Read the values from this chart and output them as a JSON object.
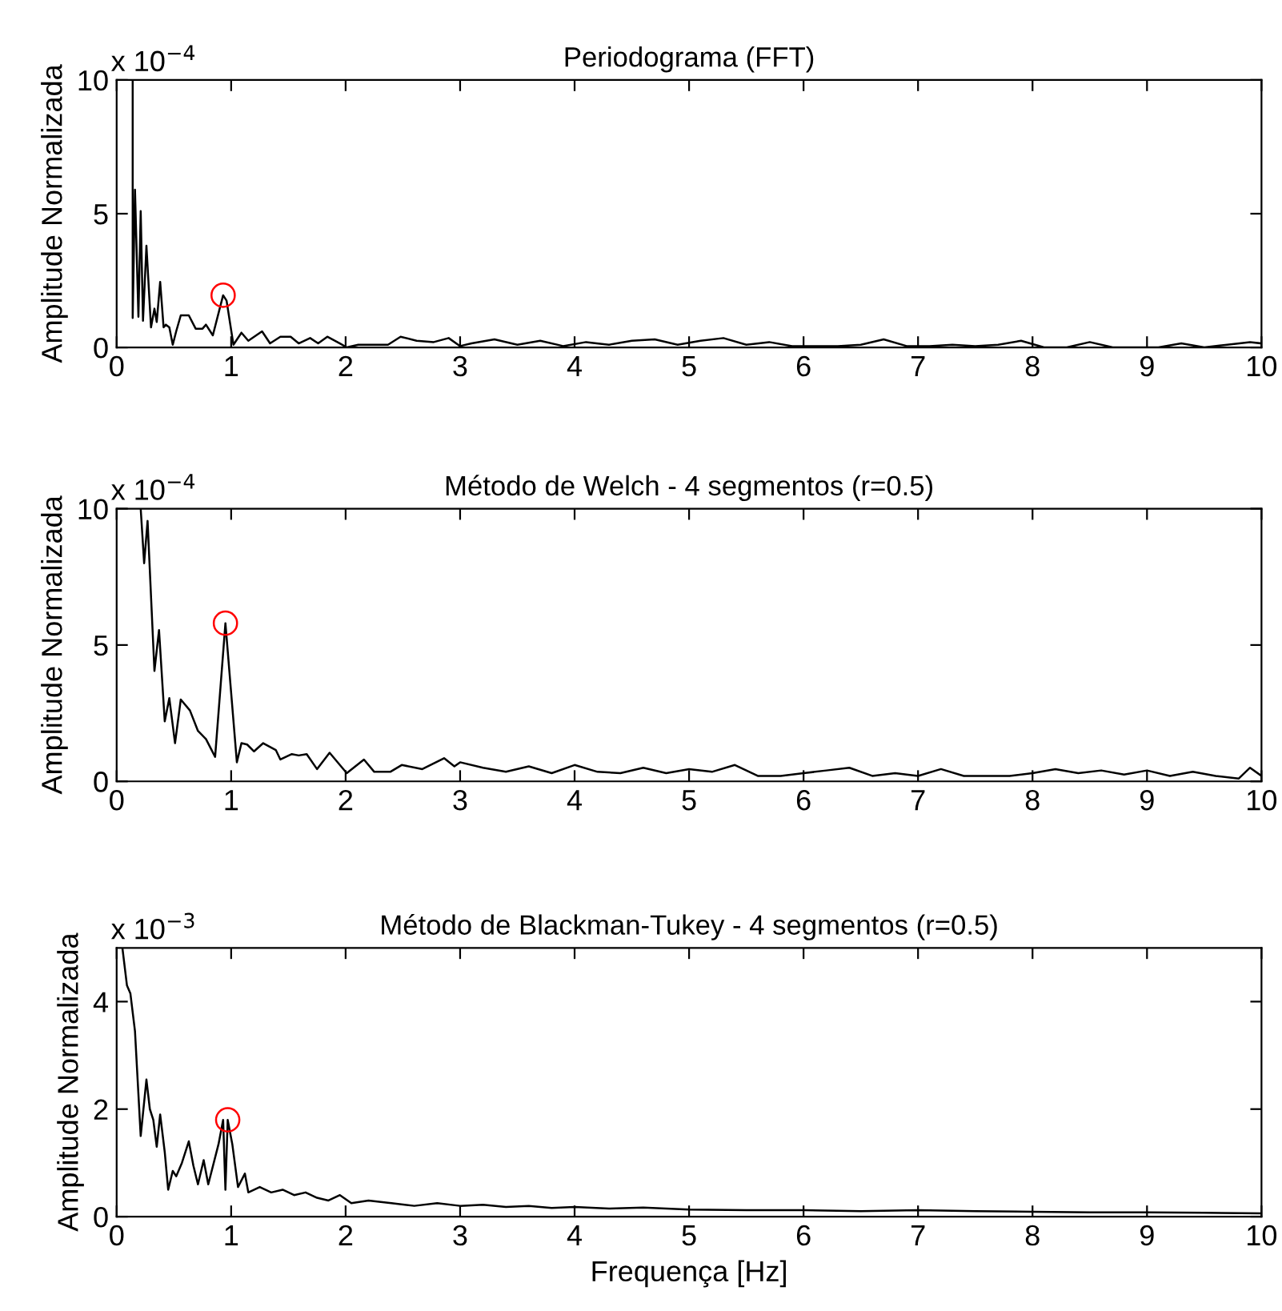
{
  "chart_data": [
    {
      "type": "line",
      "title": "Periodograma (FFT)",
      "ylabel": "Amplitude Normalizada",
      "annotations": [
        "x 10$^{−4}$"
      ],
      "xlim": [
        0,
        10
      ],
      "xticks": [
        0,
        1,
        2,
        3,
        4,
        5,
        6,
        7,
        8,
        9,
        10
      ],
      "ylim": [
        0,
        10
      ],
      "yticks": [
        0,
        5,
        10
      ],
      "series": [
        {
          "color": "#000000",
          "x": [
            0.14,
            0.14,
            0.16,
            0.19,
            0.21,
            0.23,
            0.26,
            0.3,
            0.33,
            0.35,
            0.38,
            0.41,
            0.43,
            0.46,
            0.49,
            0.52,
            0.56,
            0.63,
            0.69,
            0.75,
            0.78,
            0.84,
            0.93,
            0.96,
            1.02,
            1.09,
            1.15,
            1.27,
            1.34,
            1.43,
            1.52,
            1.59,
            1.69,
            1.76,
            1.84,
            1.95,
            2.01,
            2.11,
            2.37,
            2.48,
            2.62,
            2.77,
            2.9,
            3.0,
            3.1,
            3.3,
            3.5,
            3.7,
            3.9,
            4.1,
            4.3,
            4.5,
            4.7,
            4.9,
            5.1,
            5.3,
            5.5,
            5.7,
            5.9,
            6.1,
            6.3,
            6.5,
            6.7,
            6.9,
            7.1,
            7.3,
            7.5,
            7.7,
            7.9,
            8.1,
            8.3,
            8.5,
            8.7,
            8.9,
            9.1,
            9.3,
            9.5,
            9.7,
            9.9,
            10
          ],
          "values": [
            10,
            1.1,
            5.9,
            1.15,
            5.1,
            1.0,
            3.8,
            0.75,
            1.45,
            0.95,
            2.45,
            0.75,
            0.85,
            0.75,
            0.1,
            0.6,
            1.2,
            1.2,
            0.7,
            0.7,
            0.85,
            0.45,
            1.95,
            1.75,
            0.1,
            0.55,
            0.25,
            0.6,
            0.15,
            0.4,
            0.4,
            0.15,
            0.35,
            0.15,
            0.4,
            0.15,
            0.0,
            0.1,
            0.1,
            0.4,
            0.25,
            0.2,
            0.35,
            0.05,
            0.15,
            0.3,
            0.1,
            0.25,
            0.05,
            0.2,
            0.1,
            0.25,
            0.3,
            0.1,
            0.25,
            0.35,
            0.1,
            0.2,
            0.05,
            0.05,
            0.05,
            0.1,
            0.3,
            0.05,
            0.05,
            0.1,
            0.05,
            0.1,
            0.25,
            0.0,
            0.0,
            0.2,
            0.0,
            0.0,
            0.0,
            0.15,
            0.0,
            0.1,
            0.2,
            0.15
          ]
        },
        {
          "type": "scatter",
          "marker": "circle",
          "color": "#ff0000",
          "x": [
            0.93
          ],
          "values": [
            1.95
          ]
        }
      ]
    },
    {
      "type": "line",
      "title": "Método de Welch - 4 segmentos (r=0.5)",
      "ylabel": "Amplitude Normalizada",
      "annotations": [
        "x 10$^{−4}$"
      ],
      "xlim": [
        0,
        10
      ],
      "xticks": [
        0,
        1,
        2,
        3,
        4,
        5,
        6,
        7,
        8,
        9,
        10
      ],
      "ylim": [
        0,
        10
      ],
      "yticks": [
        0,
        5,
        10
      ],
      "series": [
        {
          "color": "#000000",
          "x": [
            0.21,
            0.24,
            0.27,
            0.33,
            0.37,
            0.42,
            0.46,
            0.51,
            0.56,
            0.64,
            0.71,
            0.78,
            0.86,
            0.95,
            1.05,
            1.09,
            1.14,
            1.2,
            1.28,
            1.39,
            1.43,
            1.53,
            1.59,
            1.66,
            1.75,
            1.86,
            2.01,
            2.16,
            2.25,
            2.39,
            2.49,
            2.67,
            2.86,
            2.95,
            3.0,
            3.2,
            3.4,
            3.6,
            3.8,
            4.0,
            4.2,
            4.4,
            4.6,
            4.8,
            5.0,
            5.2,
            5.4,
            5.6,
            5.8,
            6.0,
            6.2,
            6.4,
            6.6,
            6.8,
            7.0,
            7.2,
            7.4,
            7.6,
            7.8,
            8.0,
            8.2,
            8.4,
            8.6,
            8.8,
            9.0,
            9.2,
            9.4,
            9.6,
            9.8,
            9.9,
            10
          ],
          "values": [
            10,
            8.0,
            9.55,
            4.05,
            5.55,
            2.2,
            3.05,
            1.4,
            3.0,
            2.6,
            1.85,
            1.55,
            0.9,
            5.8,
            0.7,
            1.4,
            1.35,
            1.1,
            1.4,
            1.15,
            0.8,
            1.0,
            0.95,
            1.0,
            0.45,
            1.05,
            0.3,
            0.8,
            0.35,
            0.35,
            0.6,
            0.45,
            0.85,
            0.55,
            0.7,
            0.5,
            0.35,
            0.55,
            0.3,
            0.6,
            0.35,
            0.3,
            0.5,
            0.3,
            0.45,
            0.35,
            0.6,
            0.2,
            0.2,
            0.3,
            0.4,
            0.5,
            0.2,
            0.3,
            0.2,
            0.45,
            0.2,
            0.2,
            0.2,
            0.3,
            0.45,
            0.3,
            0.4,
            0.25,
            0.4,
            0.2,
            0.35,
            0.2,
            0.1,
            0.5,
            0.2
          ]
        },
        {
          "type": "scatter",
          "marker": "circle",
          "color": "#ff0000",
          "x": [
            0.95
          ],
          "values": [
            5.8
          ]
        }
      ]
    },
    {
      "type": "line",
      "title": "Método de Blackman-Tukey - 4 segmentos (r=0.5)",
      "xlabel": "Frequença [Hz]",
      "ylabel": "Amplitude Normalizada",
      "annotations": [
        "x 10$^{−3}$"
      ],
      "xlim": [
        0,
        10
      ],
      "xticks": [
        0,
        1,
        2,
        3,
        4,
        5,
        6,
        7,
        8,
        9,
        10
      ],
      "ylim": [
        0,
        5
      ],
      "yticks": [
        0,
        2,
        4
      ],
      "series": [
        {
          "color": "#000000",
          "x": [
            0.05,
            0.09,
            0.12,
            0.16,
            0.21,
            0.26,
            0.29,
            0.32,
            0.35,
            0.38,
            0.42,
            0.45,
            0.49,
            0.52,
            0.57,
            0.63,
            0.67,
            0.71,
            0.76,
            0.8,
            0.89,
            0.93,
            0.95,
            0.97,
            1.01,
            1.06,
            1.12,
            1.15,
            1.25,
            1.35,
            1.45,
            1.55,
            1.65,
            1.75,
            1.85,
            1.95,
            2.05,
            2.2,
            2.4,
            2.6,
            2.8,
            3.0,
            3.2,
            3.4,
            3.6,
            3.8,
            4.0,
            4.3,
            4.6,
            5.0,
            5.5,
            6.0,
            6.5,
            7.0,
            7.5,
            8.0,
            8.5,
            9.0,
            9.5,
            10
          ],
          "values": [
            5.0,
            4.3,
            4.15,
            3.45,
            1.5,
            2.55,
            2.0,
            1.8,
            1.3,
            1.9,
            1.2,
            0.5,
            0.85,
            0.75,
            1.0,
            1.4,
            0.95,
            0.6,
            1.05,
            0.6,
            1.35,
            1.8,
            0.5,
            1.8,
            1.35,
            0.55,
            0.8,
            0.45,
            0.55,
            0.45,
            0.5,
            0.4,
            0.45,
            0.35,
            0.3,
            0.4,
            0.25,
            0.3,
            0.25,
            0.2,
            0.25,
            0.2,
            0.22,
            0.18,
            0.2,
            0.16,
            0.18,
            0.15,
            0.17,
            0.13,
            0.12,
            0.12,
            0.1,
            0.12,
            0.1,
            0.09,
            0.08,
            0.08,
            0.07,
            0.06
          ]
        },
        {
          "type": "scatter",
          "marker": "circle",
          "color": "#ff0000",
          "x": [
            0.97
          ],
          "values": [
            1.8
          ]
        }
      ]
    }
  ]
}
